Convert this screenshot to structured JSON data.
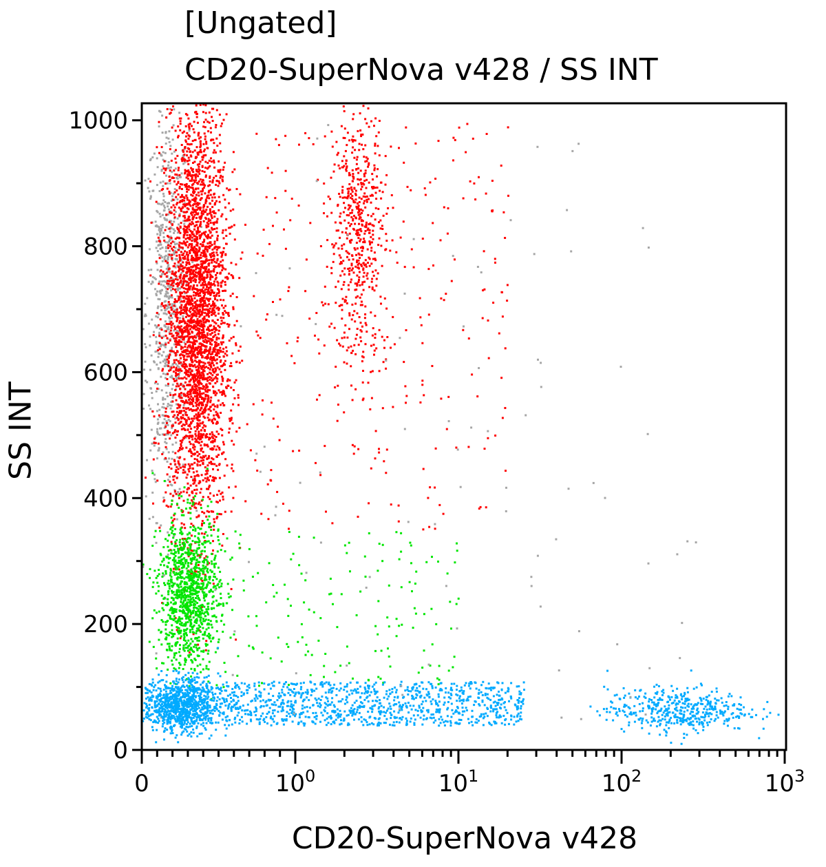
{
  "chart_data": {
    "type": "scatter",
    "title_lines": [
      "[Ungated]",
      "CD20-SuperNova v428 / SS INT"
    ],
    "xlabel": "CD20-SuperNova v428",
    "ylabel": "SS INT",
    "x_scale": "biexponential (linear 0 to 1, log decades above)",
    "xlim": [
      0,
      1000
    ],
    "ylim": [
      0,
      1027
    ],
    "x_ticks": [
      {
        "value": 0,
        "label": "0"
      },
      {
        "value": 1,
        "label": "10",
        "exp": "0"
      },
      {
        "value": 10,
        "label": "10",
        "exp": "1"
      },
      {
        "value": 100,
        "label": "10",
        "exp": "2"
      },
      {
        "value": 1000,
        "label": "10",
        "exp": "3"
      }
    ],
    "y_ticks": [
      0,
      200,
      400,
      600,
      800,
      1000
    ],
    "grid": false,
    "legend": "none",
    "populations": [
      {
        "color": "#a6a6a6",
        "x_range": [
          0.02,
          0.3
        ],
        "y_range": [
          380,
          1027
        ],
        "n": 700,
        "shape": "gauss"
      },
      {
        "color": "#ff0000",
        "x_range": [
          0.15,
          0.55
        ],
        "y_range": [
          350,
          1027
        ],
        "n": 3200,
        "shape": "gauss"
      },
      {
        "color": "#ff0000",
        "x_range": [
          1.6,
          3.5
        ],
        "y_range": [
          620,
          1027
        ],
        "n": 550,
        "shape": "gauss"
      },
      {
        "color": "#ff0000",
        "x_range": [
          0.4,
          20
        ],
        "y_range": [
          350,
          1000
        ],
        "n": 300,
        "shape": "uniform"
      },
      {
        "color": "#00e600",
        "x_range": [
          0.1,
          0.5
        ],
        "y_range": [
          130,
          370
        ],
        "n": 1100,
        "shape": "gauss"
      },
      {
        "color": "#00e600",
        "x_range": [
          0.4,
          10
        ],
        "y_range": [
          100,
          350
        ],
        "n": 160,
        "shape": "uniform"
      },
      {
        "color": "#00aaff",
        "x_range": [
          0,
          0.5
        ],
        "y_range": [
          30,
          115
        ],
        "n": 1000,
        "shape": "gauss"
      },
      {
        "color": "#00aaff",
        "x_range": [
          0.5,
          25
        ],
        "y_range": [
          40,
          110
        ],
        "n": 1000,
        "shape": "uniform"
      },
      {
        "color": "#00aaff",
        "x_range": [
          80,
          600
        ],
        "y_range": [
          30,
          100
        ],
        "n": 450,
        "shape": "gauss"
      },
      {
        "color": "#a6a6a6",
        "x_range": [
          0.4,
          300
        ],
        "y_range": [
          50,
          1000
        ],
        "n": 90,
        "shape": "uniform"
      }
    ]
  }
}
